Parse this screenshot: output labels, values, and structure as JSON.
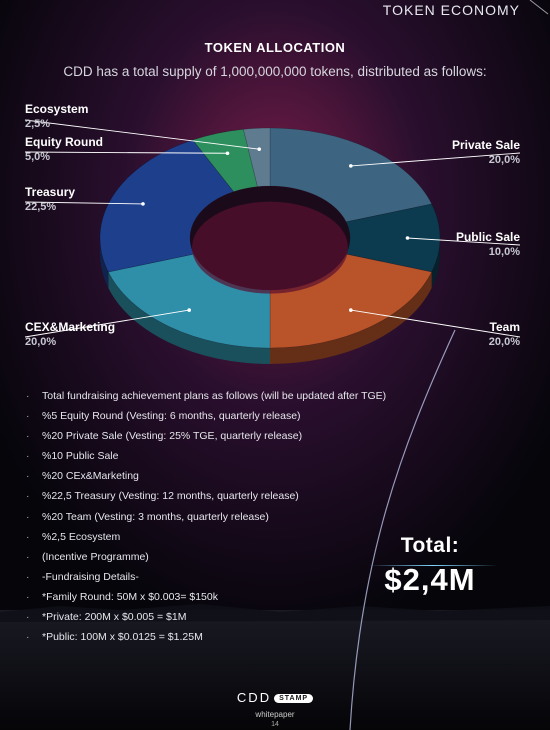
{
  "header": {
    "section": "TOKEN ECONOMY"
  },
  "chart_data": {
    "type": "pie",
    "title": "TOKEN ALLOCATION",
    "subtitle": "CDD has a total supply of 1,000,000,000 tokens, distributed as follows:",
    "categories": [
      "Private Sale",
      "Public Sale",
      "Team",
      "CEX&Marketing",
      "Treasury",
      "Equity Round",
      "Ecosystem"
    ],
    "values": [
      20.0,
      10.0,
      20.0,
      20.0,
      22.5,
      5.0,
      2.5
    ],
    "value_labels": [
      "20,0%",
      "10,0%",
      "20,0%",
      "20,0%",
      "22,5%",
      "5,0%",
      "2,5%"
    ],
    "colors": [
      "#3d6480",
      "#0c3a4e",
      "#b8532a",
      "#2f8fa8",
      "#1d3f8c",
      "#2e8f5e",
      "#5e7b90"
    ]
  },
  "notes": [
    "Total fundraising achievement plans as follows (will be updated after TGE)",
    "%5 Equity Round (Vesting: 6 months, quarterly release)",
    "%20 Private Sale (Vesting: 25% TGE, quarterly release)",
    "%10 Public Sale",
    "%20 CEx&Marketing",
    "%22,5 Treasury (Vesting: 12 months, quarterly release)",
    "%20 Team (Vesting: 3 months, quarterly release)",
    "%2,5 Ecosystem",
    "(Incentive Programme)",
    "-Fundraising Details-",
    "*Family Round: 50M x $0.003= $150k",
    "*Private: 200M x $0.005 = $1M",
    "*Public: 100M x $0.0125 = $1.25M"
  ],
  "bullet_symbol": "·",
  "total": {
    "label": "Total:",
    "value": "$2,4M"
  },
  "footer": {
    "logo": "CDD",
    "badge": "STAMP",
    "subtitle": "whitepaper",
    "page": "14"
  }
}
